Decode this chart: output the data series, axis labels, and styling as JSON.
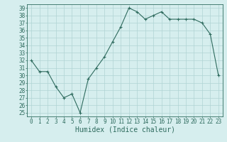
{
  "x": [
    0,
    1,
    2,
    3,
    4,
    5,
    6,
    7,
    8,
    9,
    10,
    11,
    12,
    13,
    14,
    15,
    16,
    17,
    18,
    19,
    20,
    21,
    22,
    23
  ],
  "y": [
    32.0,
    30.5,
    30.5,
    28.5,
    27.0,
    27.5,
    25.0,
    29.5,
    31.0,
    32.5,
    34.5,
    36.5,
    39.0,
    38.5,
    37.5,
    38.0,
    38.5,
    37.5,
    37.5,
    37.5,
    37.5,
    37.0,
    35.5,
    30.0
  ],
  "line_color": "#2e6b5e",
  "marker": "+",
  "marker_size": 3,
  "bg_color": "#d6eeee",
  "grid_color": "#b0d4d4",
  "xlabel": "Humidex (Indice chaleur)",
  "ylabel": "",
  "ylim": [
    24.5,
    39.5
  ],
  "xlim": [
    -0.5,
    23.5
  ],
  "yticks": [
    25,
    26,
    27,
    28,
    29,
    30,
    31,
    32,
    33,
    34,
    35,
    36,
    37,
    38,
    39
  ],
  "xticks": [
    0,
    1,
    2,
    3,
    4,
    5,
    6,
    7,
    8,
    9,
    10,
    11,
    12,
    13,
    14,
    15,
    16,
    17,
    18,
    19,
    20,
    21,
    22,
    23
  ],
  "font_color": "#2e6b5e",
  "tick_fontsize": 5.5,
  "xlabel_fontsize": 7.0
}
